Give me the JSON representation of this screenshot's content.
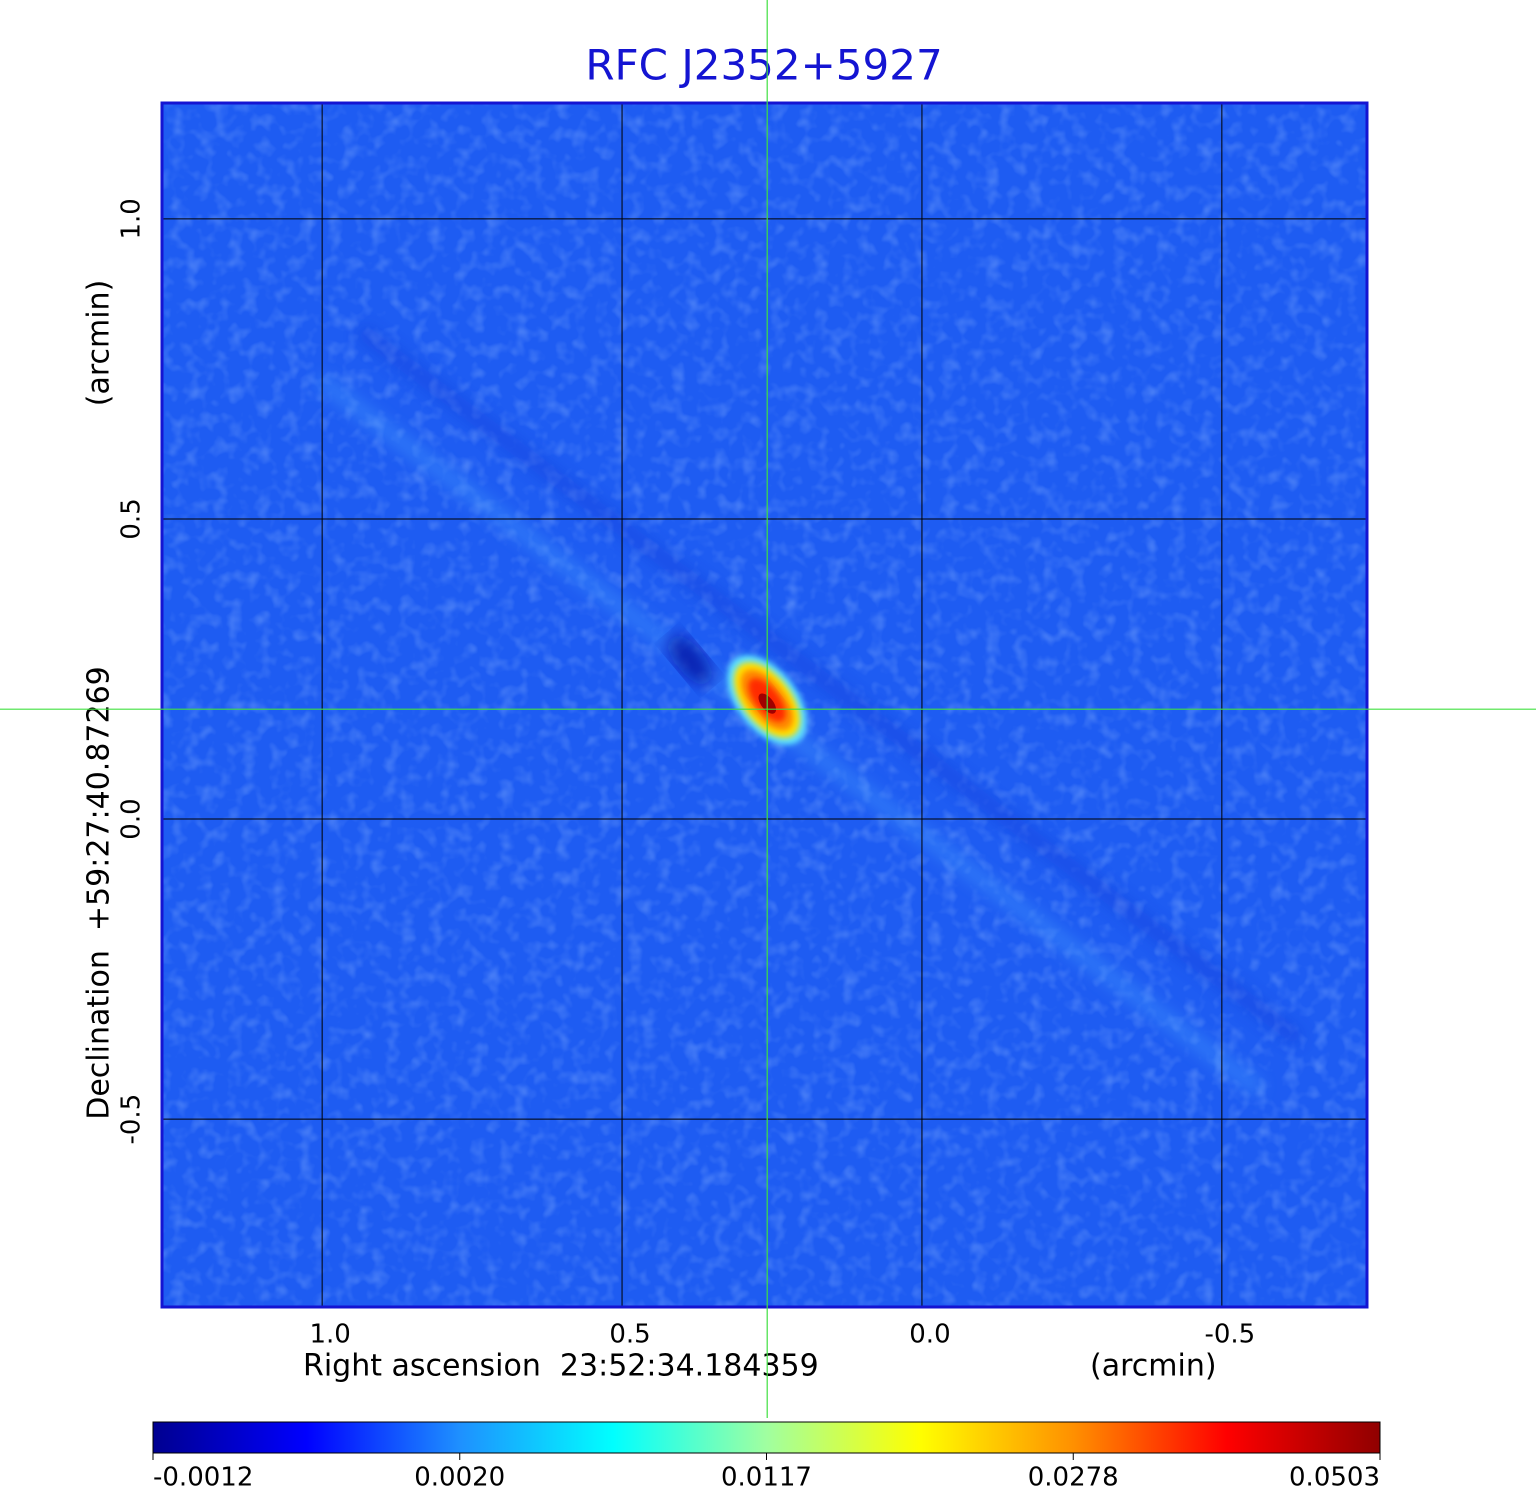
{
  "chart_data": {
    "type": "image",
    "title": "RFC J2352+5927",
    "xlabel": "Right ascension  23:52:34.184359",
    "xunit": "(arcmin)",
    "ylabel": "Declination  +59:27:40.87269",
    "yunit": "(arcmin)",
    "xlim": [
      1.267,
      -0.742
    ],
    "ylim": [
      -0.813,
      1.193
    ],
    "xticks": [
      {
        "value": 1,
        "label": "1.0"
      },
      0.5,
      {
        "value": 0,
        "label": "0.0"
      },
      -0.5
    ],
    "yticks": [
      {
        "value": 1,
        "label": "1.0"
      },
      0.5,
      {
        "value": 0,
        "label": "0.0"
      },
      -0.5
    ],
    "grid": true,
    "marker": {
      "x": 0.258,
      "y": 0.183
    },
    "colorbar_ticks": [
      -0.0012,
      {
        "value": 0.002,
        "label": "0.0020"
      },
      0.0117,
      0.0278,
      0.0503
    ],
    "colormap": [
      "#000090",
      "#0000ff",
      "#1e90ff",
      "#00ffff",
      "#a0ffa0",
      "#ffff00",
      "#ff9000",
      "#ff0000",
      "#900000"
    ]
  }
}
